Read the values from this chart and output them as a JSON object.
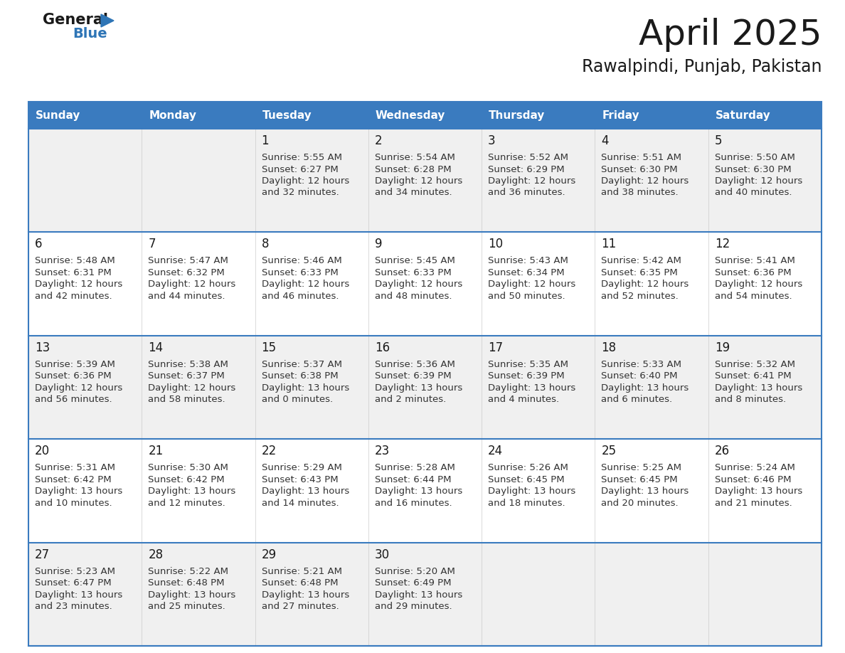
{
  "title": "April 2025",
  "subtitle": "Rawalpindi, Punjab, Pakistan",
  "days_of_week": [
    "Sunday",
    "Monday",
    "Tuesday",
    "Wednesday",
    "Thursday",
    "Friday",
    "Saturday"
  ],
  "header_bg": "#3A7BBF",
  "header_text": "#FFFFFF",
  "row_bg_odd": "#F0F0F0",
  "row_bg_even": "#FFFFFF",
  "week_divider": "#3A7BBF",
  "title_color": "#1A1A1A",
  "subtitle_color": "#1A1A1A",
  "day_number_color": "#1A1A1A",
  "cell_text_color": "#333333",
  "logo_general_color": "#1A1A1A",
  "logo_blue_color": "#2E75B6",
  "logo_triangle_color": "#2E75B6",
  "calendar_data": [
    [
      {
        "day": null,
        "sunrise": null,
        "sunset": null,
        "daylight_line1": null,
        "daylight_line2": null
      },
      {
        "day": null,
        "sunrise": null,
        "sunset": null,
        "daylight_line1": null,
        "daylight_line2": null
      },
      {
        "day": 1,
        "sunrise": "5:55 AM",
        "sunset": "6:27 PM",
        "daylight_line1": "12 hours",
        "daylight_line2": "and 32 minutes."
      },
      {
        "day": 2,
        "sunrise": "5:54 AM",
        "sunset": "6:28 PM",
        "daylight_line1": "12 hours",
        "daylight_line2": "and 34 minutes."
      },
      {
        "day": 3,
        "sunrise": "5:52 AM",
        "sunset": "6:29 PM",
        "daylight_line1": "12 hours",
        "daylight_line2": "and 36 minutes."
      },
      {
        "day": 4,
        "sunrise": "5:51 AM",
        "sunset": "6:30 PM",
        "daylight_line1": "12 hours",
        "daylight_line2": "and 38 minutes."
      },
      {
        "day": 5,
        "sunrise": "5:50 AM",
        "sunset": "6:30 PM",
        "daylight_line1": "12 hours",
        "daylight_line2": "and 40 minutes."
      }
    ],
    [
      {
        "day": 6,
        "sunrise": "5:48 AM",
        "sunset": "6:31 PM",
        "daylight_line1": "12 hours",
        "daylight_line2": "and 42 minutes."
      },
      {
        "day": 7,
        "sunrise": "5:47 AM",
        "sunset": "6:32 PM",
        "daylight_line1": "12 hours",
        "daylight_line2": "and 44 minutes."
      },
      {
        "day": 8,
        "sunrise": "5:46 AM",
        "sunset": "6:33 PM",
        "daylight_line1": "12 hours",
        "daylight_line2": "and 46 minutes."
      },
      {
        "day": 9,
        "sunrise": "5:45 AM",
        "sunset": "6:33 PM",
        "daylight_line1": "12 hours",
        "daylight_line2": "and 48 minutes."
      },
      {
        "day": 10,
        "sunrise": "5:43 AM",
        "sunset": "6:34 PM",
        "daylight_line1": "12 hours",
        "daylight_line2": "and 50 minutes."
      },
      {
        "day": 11,
        "sunrise": "5:42 AM",
        "sunset": "6:35 PM",
        "daylight_line1": "12 hours",
        "daylight_line2": "and 52 minutes."
      },
      {
        "day": 12,
        "sunrise": "5:41 AM",
        "sunset": "6:36 PM",
        "daylight_line1": "12 hours",
        "daylight_line2": "and 54 minutes."
      }
    ],
    [
      {
        "day": 13,
        "sunrise": "5:39 AM",
        "sunset": "6:36 PM",
        "daylight_line1": "12 hours",
        "daylight_line2": "and 56 minutes."
      },
      {
        "day": 14,
        "sunrise": "5:38 AM",
        "sunset": "6:37 PM",
        "daylight_line1": "12 hours",
        "daylight_line2": "and 58 minutes."
      },
      {
        "day": 15,
        "sunrise": "5:37 AM",
        "sunset": "6:38 PM",
        "daylight_line1": "13 hours",
        "daylight_line2": "and 0 minutes."
      },
      {
        "day": 16,
        "sunrise": "5:36 AM",
        "sunset": "6:39 PM",
        "daylight_line1": "13 hours",
        "daylight_line2": "and 2 minutes."
      },
      {
        "day": 17,
        "sunrise": "5:35 AM",
        "sunset": "6:39 PM",
        "daylight_line1": "13 hours",
        "daylight_line2": "and 4 minutes."
      },
      {
        "day": 18,
        "sunrise": "5:33 AM",
        "sunset": "6:40 PM",
        "daylight_line1": "13 hours",
        "daylight_line2": "and 6 minutes."
      },
      {
        "day": 19,
        "sunrise": "5:32 AM",
        "sunset": "6:41 PM",
        "daylight_line1": "13 hours",
        "daylight_line2": "and 8 minutes."
      }
    ],
    [
      {
        "day": 20,
        "sunrise": "5:31 AM",
        "sunset": "6:42 PM",
        "daylight_line1": "13 hours",
        "daylight_line2": "and 10 minutes."
      },
      {
        "day": 21,
        "sunrise": "5:30 AM",
        "sunset": "6:42 PM",
        "daylight_line1": "13 hours",
        "daylight_line2": "and 12 minutes."
      },
      {
        "day": 22,
        "sunrise": "5:29 AM",
        "sunset": "6:43 PM",
        "daylight_line1": "13 hours",
        "daylight_line2": "and 14 minutes."
      },
      {
        "day": 23,
        "sunrise": "5:28 AM",
        "sunset": "6:44 PM",
        "daylight_line1": "13 hours",
        "daylight_line2": "and 16 minutes."
      },
      {
        "day": 24,
        "sunrise": "5:26 AM",
        "sunset": "6:45 PM",
        "daylight_line1": "13 hours",
        "daylight_line2": "and 18 minutes."
      },
      {
        "day": 25,
        "sunrise": "5:25 AM",
        "sunset": "6:45 PM",
        "daylight_line1": "13 hours",
        "daylight_line2": "and 20 minutes."
      },
      {
        "day": 26,
        "sunrise": "5:24 AM",
        "sunset": "6:46 PM",
        "daylight_line1": "13 hours",
        "daylight_line2": "and 21 minutes."
      }
    ],
    [
      {
        "day": 27,
        "sunrise": "5:23 AM",
        "sunset": "6:47 PM",
        "daylight_line1": "13 hours",
        "daylight_line2": "and 23 minutes."
      },
      {
        "day": 28,
        "sunrise": "5:22 AM",
        "sunset": "6:48 PM",
        "daylight_line1": "13 hours",
        "daylight_line2": "and 25 minutes."
      },
      {
        "day": 29,
        "sunrise": "5:21 AM",
        "sunset": "6:48 PM",
        "daylight_line1": "13 hours",
        "daylight_line2": "and 27 minutes."
      },
      {
        "day": 30,
        "sunrise": "5:20 AM",
        "sunset": "6:49 PM",
        "daylight_line1": "13 hours",
        "daylight_line2": "and 29 minutes."
      },
      {
        "day": null,
        "sunrise": null,
        "sunset": null,
        "daylight_line1": null,
        "daylight_line2": null
      },
      {
        "day": null,
        "sunrise": null,
        "sunset": null,
        "daylight_line1": null,
        "daylight_line2": null
      },
      {
        "day": null,
        "sunrise": null,
        "sunset": null,
        "daylight_line1": null,
        "daylight_line2": null
      }
    ]
  ]
}
